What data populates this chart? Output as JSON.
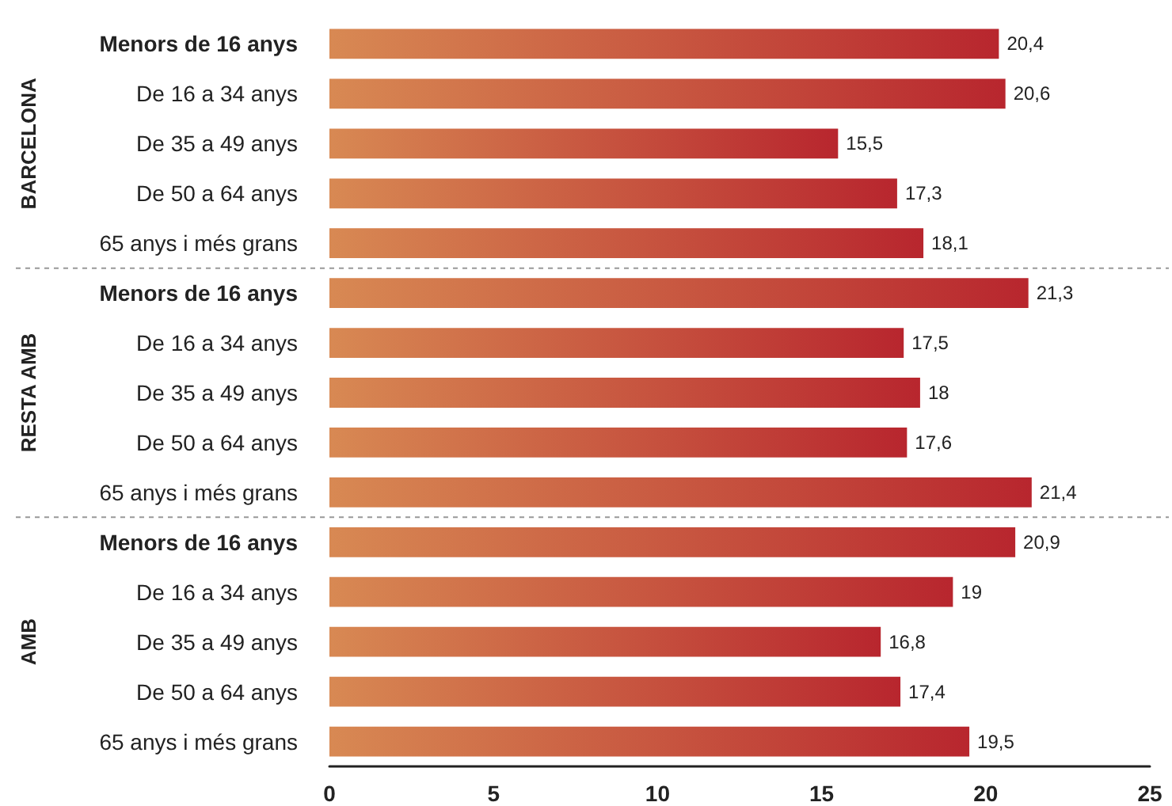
{
  "chart_data": {
    "type": "bar",
    "orientation": "horizontal",
    "categories": [
      "Menors de 16 anys",
      "De 16 a 34 anys",
      "De 35 a 49 anys",
      "De 50 a 64 anys",
      "65 anys i més grans",
      "Menors de 16 anys",
      "De 16 a 34 anys",
      "De 35 a 49 anys",
      "De 50 a 64 anys",
      "65 anys i més grans",
      "Menors de 16 anys",
      "De 16 a 34 anys",
      "De 35 a 49 anys",
      "De 50 a 64 anys",
      "65 anys i més grans"
    ],
    "values": [
      20.4,
      20.6,
      15.5,
      17.3,
      18.1,
      21.3,
      17.5,
      18,
      17.6,
      21.4,
      20.9,
      19,
      16.8,
      17.4,
      19.5
    ],
    "value_labels": [
      "20,4",
      "20,6",
      "15,5",
      "17,3",
      "18,1",
      "21,3",
      "17,5",
      "18",
      "17,6",
      "21,4",
      "20,9",
      "19",
      "16,8",
      "17,4",
      "19,5"
    ],
    "color": "#b8262e",
    "xlim": [
      0,
      25
    ],
    "xticks": [
      0,
      5,
      10,
      15,
      20,
      25
    ],
    "annotations": [
      "BARCELONA",
      "RESTA AMB",
      "AMB"
    ]
  }
}
